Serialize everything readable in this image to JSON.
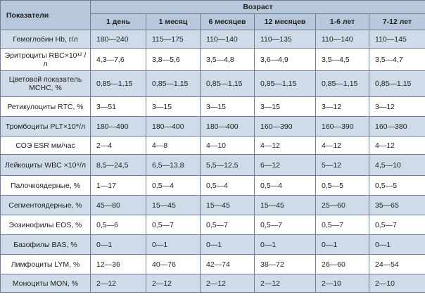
{
  "header": {
    "param_label": "Показатели",
    "group_label": "Возраст",
    "ages": [
      "1 день",
      "1 месяц",
      "6 месяцев",
      "12 месяцев",
      "1-6 лет",
      "7-12 лет"
    ]
  },
  "rows": [
    {
      "param": "Гемоглобин Hb, г/л",
      "values": [
        "180—240",
        "115—175",
        "110—140",
        "110—135",
        "110—140",
        "110—145"
      ]
    },
    {
      "param": "Эритроциты RBC×10¹² /л",
      "values": [
        "4,3—7,6",
        "3,8—5,6",
        "3,5—4,8",
        "3,6—4,9",
        "3,5—4,5",
        "3,5—4,7"
      ]
    },
    {
      "param": "Цветовой показатель MCHC, %",
      "values": [
        "0,85—1,15",
        "0,85—1,15",
        "0,85—1,15",
        "0,85—1,15",
        "0,85—1,15",
        "0,85—1,15"
      ]
    },
    {
      "param": "Ретикулоциты RTC, %",
      "values": [
        "3—51",
        "3—15",
        "3—15",
        "3—15",
        "3—12",
        "3—12"
      ]
    },
    {
      "param": "Тромбоциты PLT×10⁹/л",
      "values": [
        "180—490",
        "180—400",
        "180—400",
        "160—390",
        "160—390",
        "160—380"
      ]
    },
    {
      "param": "СОЭ ESR мм/час",
      "values": [
        "2—4",
        "4—8",
        "4—10",
        "4—12",
        "4—12",
        "4—12"
      ]
    },
    {
      "param": "Лейкоциты WBC ×10⁹/л",
      "values": [
        "8,5—24,5",
        "6,5—13,8",
        "5,5—12,5",
        "6—12",
        "5—12",
        "4,5—10"
      ]
    },
    {
      "param": "Палочкоядерные, %",
      "values": [
        "1—17",
        "0,5—4",
        "0,5—4",
        "0,5—4",
        "0,5—5",
        "0,5—5"
      ]
    },
    {
      "param": "Сегментоядерные, %",
      "values": [
        "45—80",
        "15—45",
        "15—45",
        "15—45",
        "25—60",
        "35—65"
      ]
    },
    {
      "param": "Эозинофилы EOS, %",
      "values": [
        "0,5—6",
        "0,5—7",
        "0,5—7",
        "0,5—7",
        "0,5—7",
        "0,5—7"
      ]
    },
    {
      "param": "Базофилы BAS, %",
      "values": [
        "0—1",
        "0—1",
        "0—1",
        "0—1",
        "0—1",
        "0—1"
      ]
    },
    {
      "param": "Лимфоциты LYM, %",
      "values": [
        "12—36",
        "40—76",
        "42—74",
        "38—72",
        "26—60",
        "24—54"
      ]
    },
    {
      "param": "Моноциты MON, %",
      "values": [
        "2—12",
        "2—12",
        "2—12",
        "2—12",
        "2—10",
        "2—10"
      ]
    }
  ]
}
